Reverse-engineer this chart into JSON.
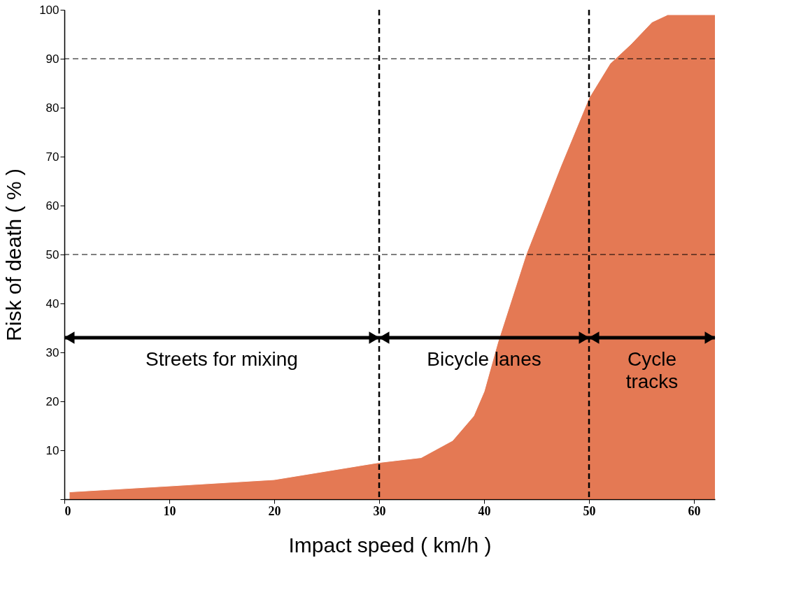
{
  "chart_data": {
    "type": "area",
    "xlabel": "Impact speed ( km/h )",
    "ylabel": "Risk of death ( % )",
    "x": [
      0.5,
      10,
      20,
      30,
      34,
      37,
      39,
      40,
      41.3,
      44,
      47.3,
      50,
      52,
      54,
      56,
      57.5,
      62
    ],
    "series": [
      {
        "color": "#d8400c",
        "values": [
          1.5,
          2.7,
          4,
          7.5,
          8.5,
          12,
          17,
          22,
          32,
          50,
          68,
          82,
          89,
          93,
          97.5,
          99,
          99
        ]
      }
    ],
    "xlim": [
      0,
      62
    ],
    "ylim": [
      0,
      100
    ],
    "xticks": [
      0,
      10,
      20,
      30,
      40,
      50,
      60
    ],
    "yticks": [
      {
        "value": 0,
        "label": null
      },
      10,
      20,
      30,
      40,
      50,
      60,
      70,
      80,
      90,
      100
    ],
    "grid": false,
    "ref_lines": [
      {
        "axis": "y",
        "value": 90,
        "line_style": "dashed"
      },
      {
        "axis": "y",
        "value": 50,
        "line_style": "dashed"
      },
      {
        "axis": "x",
        "value": 30,
        "line_style": "dashed"
      },
      {
        "axis": "x",
        "value": 50,
        "line_style": "dashed"
      }
    ],
    "annotations": [
      "Streets for mixing",
      "Bicycle lanes",
      "Cycle tracks"
    ]
  }
}
